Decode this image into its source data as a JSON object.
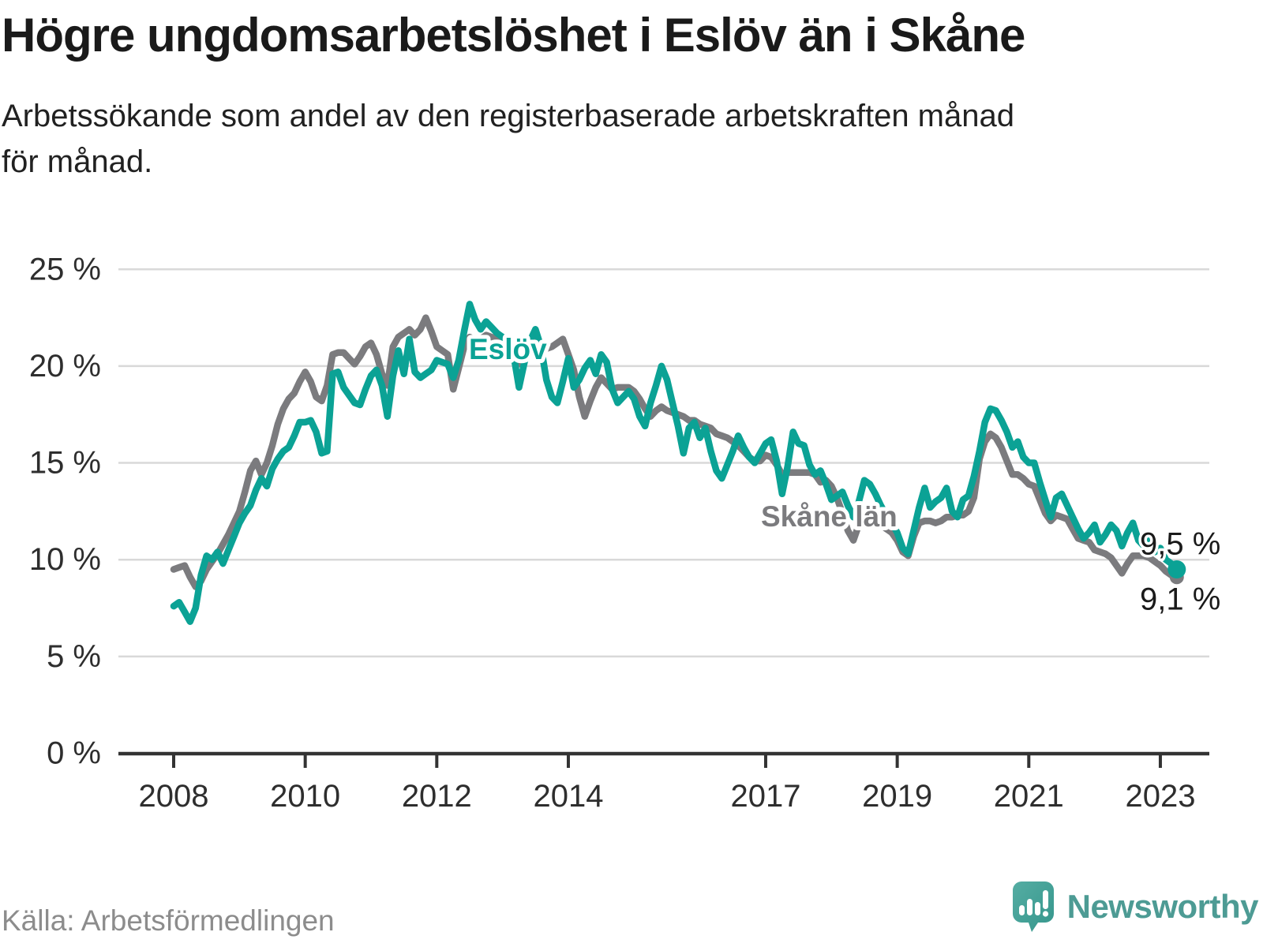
{
  "header": {
    "title": "Högre ungdomsarbetslöshet i Eslöv än i Skåne",
    "subtitle_line1": "Arbetssökande som andel av den registerbaserade arbetskraften månad",
    "subtitle_line2": "för månad."
  },
  "footer": {
    "source": "Källa: Arbetsförmedlingen",
    "brand": "Newsworthy"
  },
  "colors": {
    "eslov": "#0ba295",
    "skane": "#7b7b7e",
    "grid": "#d9d9d9",
    "axis": "#333333",
    "value_label": "#1a1a1a",
    "tick_label": "#2e2e2e",
    "brand_teal": "#4d9b94"
  },
  "chart_data": {
    "type": "line",
    "title": "Högre ungdomsarbetslöshet i Eslöv än i Skåne",
    "x_start": "2008-01",
    "x_end": "2023-04",
    "x_tick_years": [
      2008,
      2010,
      2012,
      2014,
      2017,
      2019,
      2021,
      2023
    ],
    "y_ticks": [
      0,
      5,
      10,
      15,
      20,
      25
    ],
    "y_tick_labels": [
      "0 %",
      "5 %",
      "10 %",
      "15 %",
      "20 %",
      "25 %"
    ],
    "ylim": [
      0,
      25
    ],
    "grid": true,
    "unit": "%",
    "series": [
      {
        "name": "Skåne län",
        "color": "#7b7b7e",
        "end_label": "9,1 %",
        "values": [
          9.5,
          9.6,
          9.7,
          9.1,
          8.6,
          8.9,
          9.5,
          9.9,
          10.3,
          10.8,
          11.3,
          11.9,
          12.5,
          13.5,
          14.6,
          15.1,
          14.4,
          15.0,
          15.9,
          17.0,
          17.8,
          18.3,
          18.6,
          19.2,
          19.7,
          19.2,
          18.4,
          18.2,
          19.0,
          20.6,
          20.7,
          20.7,
          20.4,
          20.1,
          20.5,
          21.0,
          21.2,
          20.6,
          19.6,
          19.0,
          21.0,
          21.5,
          21.7,
          21.9,
          21.6,
          21.9,
          22.5,
          21.8,
          21.0,
          20.8,
          20.6,
          18.8,
          19.9,
          21.0,
          21.5,
          21.3,
          21.4,
          21.6,
          21.5,
          21.4,
          21.3,
          20.9,
          20.5,
          20.1,
          20.4,
          20.9,
          21.3,
          21.1,
          20.9,
          21.0,
          21.2,
          21.4,
          20.6,
          19.8,
          18.4,
          17.4,
          18.2,
          18.9,
          19.4,
          19.1,
          18.8,
          18.9,
          18.9,
          18.9,
          18.7,
          18.3,
          17.8,
          17.4,
          17.7,
          17.9,
          17.7,
          17.6,
          17.5,
          17.4,
          17.2,
          17.2,
          17.0,
          16.9,
          16.8,
          16.5,
          16.4,
          16.3,
          16.1,
          15.9,
          15.6,
          15.3,
          15.1,
          15.1,
          15.4,
          15.3,
          14.9,
          14.4,
          14.5,
          14.5,
          14.5,
          14.5,
          14.5,
          14.4,
          14.0,
          14.1,
          13.8,
          13.2,
          12.4,
          11.5,
          11.0,
          11.8,
          12.5,
          12.4,
          12.1,
          11.8,
          11.6,
          11.4,
          11.0,
          10.4,
          10.2,
          11.2,
          11.9,
          12.0,
          12.0,
          11.9,
          12.0,
          12.2,
          12.2,
          12.3,
          12.3,
          12.5,
          13.2,
          15.2,
          16.1,
          16.5,
          16.3,
          15.8,
          15.1,
          14.4,
          14.4,
          14.2,
          13.9,
          13.8,
          13.1,
          12.4,
          12.0,
          12.3,
          12.2,
          12.1,
          11.6,
          11.1,
          11.0,
          10.9,
          10.5,
          10.4,
          10.3,
          10.1,
          9.7,
          9.3,
          9.8,
          10.2,
          10.2,
          10.2,
          10.1,
          9.9,
          9.7,
          9.4,
          9.2,
          9.1
        ]
      },
      {
        "name": "Eslöv",
        "color": "#0ba295",
        "end_label": "9,5 %",
        "values": [
          7.6,
          7.8,
          7.3,
          6.8,
          7.5,
          9.2,
          10.2,
          10.0,
          10.4,
          9.8,
          10.5,
          11.2,
          11.9,
          12.4,
          12.8,
          13.6,
          14.2,
          13.8,
          14.7,
          15.2,
          15.6,
          15.8,
          16.4,
          17.1,
          17.1,
          17.2,
          16.6,
          15.5,
          15.6,
          19.6,
          19.7,
          18.9,
          18.5,
          18.1,
          18.0,
          18.8,
          19.5,
          19.8,
          19.0,
          17.4,
          19.5,
          20.8,
          19.6,
          21.4,
          19.7,
          19.4,
          19.6,
          19.8,
          20.3,
          20.2,
          20.1,
          19.4,
          20.3,
          21.8,
          23.2,
          22.4,
          21.9,
          22.3,
          22.0,
          21.7,
          21.5,
          21.2,
          20.6,
          18.9,
          20.2,
          21.3,
          21.9,
          21.0,
          19.3,
          18.4,
          18.1,
          19.2,
          20.4,
          18.9,
          19.3,
          19.9,
          20.3,
          19.6,
          20.6,
          20.2,
          18.8,
          18.1,
          18.4,
          18.7,
          18.3,
          17.4,
          16.9,
          18.1,
          19.0,
          20.0,
          19.3,
          18.1,
          16.9,
          15.5,
          16.8,
          17.1,
          16.3,
          16.8,
          15.6,
          14.6,
          14.2,
          14.9,
          15.6,
          16.4,
          15.8,
          15.3,
          15.0,
          15.5,
          16.0,
          16.2,
          15.1,
          13.4,
          14.8,
          16.6,
          16.0,
          15.9,
          14.9,
          14.4,
          14.6,
          13.9,
          13.1,
          13.3,
          13.5,
          12.8,
          12.2,
          13.0,
          14.1,
          13.9,
          13.4,
          12.8,
          12.3,
          11.9,
          11.4,
          10.6,
          10.3,
          11.5,
          12.7,
          13.7,
          12.7,
          13.0,
          13.2,
          13.7,
          12.5,
          12.2,
          13.1,
          13.3,
          14.3,
          15.6,
          17.1,
          17.8,
          17.7,
          17.2,
          16.6,
          15.8,
          16.1,
          15.3,
          15.0,
          15.0,
          14.0,
          13.1,
          12.2,
          13.2,
          13.4,
          12.8,
          12.2,
          11.6,
          11.1,
          11.4,
          11.8,
          10.9,
          11.3,
          11.8,
          11.5,
          10.7,
          11.4,
          11.9,
          11.0,
          10.7,
          11.0,
          10.4,
          10.6,
          10.0,
          9.8,
          9.5
        ]
      }
    ]
  }
}
